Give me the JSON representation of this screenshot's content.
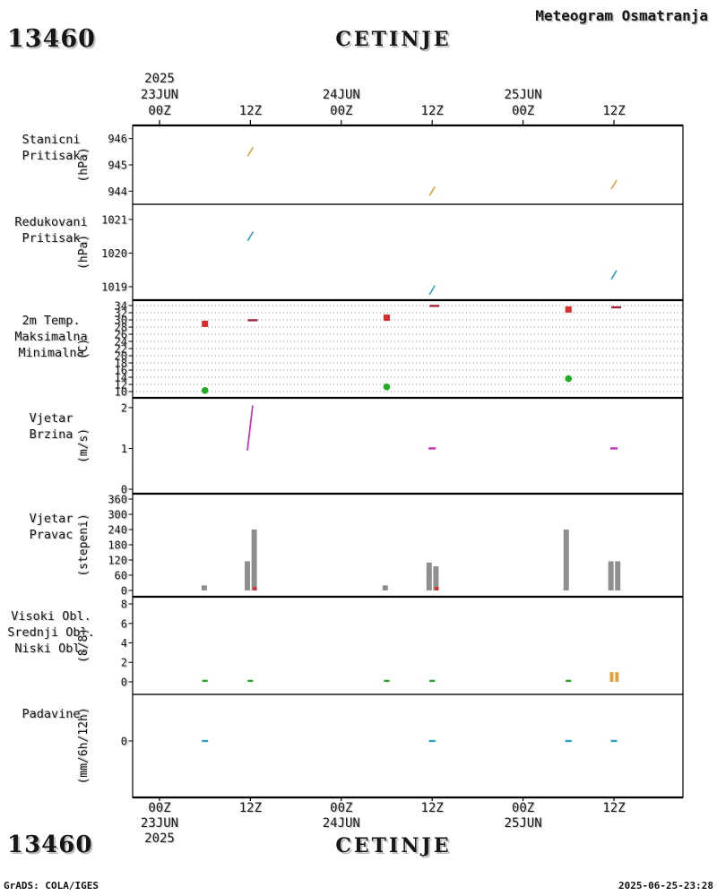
{
  "header": {
    "station_id": "13460",
    "station_name": "CETINJE",
    "title": "Meteogram Osmatranja"
  },
  "footer": {
    "station_id": "13460",
    "station_name": "CETINJE",
    "credit": "GrADS: COLA/IGES",
    "timestamp": "2025-06-25-23:28"
  },
  "time_axis": {
    "ticks": [
      {
        "h": 0,
        "label": "00Z",
        "date": "23JUN",
        "year": "2025"
      },
      {
        "h": 12,
        "label": "12Z"
      },
      {
        "h": 24,
        "label": "00Z",
        "date": "24JUN"
      },
      {
        "h": 36,
        "label": "12Z"
      },
      {
        "h": 48,
        "label": "00Z",
        "date": "25JUN"
      },
      {
        "h": 60,
        "label": "12Z"
      }
    ]
  },
  "chart_data": [
    {
      "type": "scatter",
      "id": "stanicni-pritisak",
      "labels": [
        {
          "text": "Stanicni",
          "color": "#dfa23c"
        },
        {
          "text": "Pritisak",
          "color": "#dfa23c"
        }
      ],
      "unit": "(hPa)",
      "ylim": [
        943.5,
        946.5
      ],
      "yticks": [
        946,
        945,
        944
      ],
      "series": [
        {
          "name": "stanicni-pritisak",
          "marker": "slash",
          "color": "#dfa23c",
          "points": [
            {
              "h": 12,
              "v": 945.5
            },
            {
              "h": 36,
              "v": 944.0
            },
            {
              "h": 60,
              "v": 944.25
            }
          ]
        }
      ]
    },
    {
      "type": "scatter",
      "id": "redukovani-pritisak",
      "labels": [
        {
          "text": "Redukovani",
          "color": "#2f9fc4"
        },
        {
          "text": "Pritisak",
          "color": "#2f9fc4"
        }
      ],
      "unit": "(hPa)",
      "ylim": [
        1018.6,
        1021.45
      ],
      "yticks": [
        1021,
        1020,
        1019
      ],
      "series": [
        {
          "name": "redukovani-pritisak",
          "marker": "slash",
          "color": "#2f9fc4",
          "points": [
            {
              "h": 12,
              "v": 1020.5
            },
            {
              "h": 36,
              "v": 1018.9
            },
            {
              "h": 60,
              "v": 1019.35
            }
          ]
        }
      ]
    },
    {
      "type": "scatter",
      "id": "temperatura",
      "labels": [
        {
          "text": "2m Temp.",
          "color": "#c2325a"
        },
        {
          "text": "Maksimalna",
          "color": "#d92b2b"
        },
        {
          "text": "Minimalna",
          "color": "#27a427"
        }
      ],
      "unit": "(C)",
      "ylim": [
        8.25,
        35.5
      ],
      "yticks": [
        34,
        32,
        30,
        28,
        26,
        24,
        22,
        20,
        18,
        16,
        14,
        12,
        10
      ],
      "grid": true,
      "series": [
        {
          "name": "temp-2m",
          "marker": "hdash",
          "color": "#a22438",
          "w": 11,
          "points": [
            {
              "h": 12.3,
              "v": 29.9
            },
            {
              "h": 36.3,
              "v": 33.9
            },
            {
              "h": 60.3,
              "v": 33.5
            }
          ]
        },
        {
          "name": "maksimalna",
          "marker": "square",
          "color": "#d92b2b",
          "points": [
            {
              "h": 6,
              "v": 28.9
            },
            {
              "h": 30,
              "v": 30.6
            },
            {
              "h": 54,
              "v": 32.9
            }
          ]
        },
        {
          "name": "minimalna",
          "marker": "dot",
          "color": "#1fae1f",
          "points": [
            {
              "h": 6,
              "v": 10.3
            },
            {
              "h": 30,
              "v": 11.3
            },
            {
              "h": 54,
              "v": 13.6
            }
          ]
        }
      ]
    },
    {
      "type": "line",
      "id": "vjetar-brzina",
      "labels": [
        {
          "text": "Vjetar",
          "color": "#c32ec3"
        },
        {
          "text": "Brzina",
          "color": "#c32ec3"
        }
      ],
      "unit": "(m/s)",
      "ylim": [
        -0.11,
        2.24
      ],
      "yticks": [
        2,
        1,
        0
      ],
      "series": [
        {
          "name": "brzina-segment",
          "marker": "polyline",
          "color": "#c32ec3",
          "points": [
            {
              "h": 11.6,
              "v": 0.95
            },
            {
              "h": 12.3,
              "v": 2.05
            }
          ]
        },
        {
          "name": "brzina-marks",
          "marker": "hdash",
          "color": "#c32ec3",
          "w": 8,
          "points": [
            {
              "h": 36,
              "v": 1.0
            },
            {
              "h": 60,
              "v": 1.0
            }
          ]
        }
      ]
    },
    {
      "type": "bar",
      "id": "vjetar-pravac",
      "labels": [
        {
          "text": "Vjetar",
          "color": "#a238c0"
        },
        {
          "text": "Pravac",
          "color": "#a238c0"
        }
      ],
      "unit": "(stepeni)",
      "ylim": [
        -24.7,
        381.2
      ],
      "yticks": [
        360,
        300,
        240,
        180,
        120,
        60,
        0
      ],
      "series": [
        {
          "name": "pravac-bars",
          "marker": "bar",
          "color": "#8f8f8f",
          "w": 6,
          "points": [
            {
              "h": 5.9,
              "v": 20
            },
            {
              "h": 11.6,
              "v": 115
            },
            {
              "h": 12.5,
              "v": 240
            },
            {
              "h": 29.8,
              "v": 20
            },
            {
              "h": 35.6,
              "v": 110
            },
            {
              "h": 36.5,
              "v": 95
            },
            {
              "h": 53.7,
              "v": 240
            },
            {
              "h": 59.6,
              "v": 115
            },
            {
              "h": 60.5,
              "v": 115
            }
          ]
        },
        {
          "name": "pravac-base-marks",
          "marker": "basemark",
          "color": "#d92b2b",
          "points": [
            {
              "h": 12.6,
              "v": 0
            },
            {
              "h": 36.6,
              "v": 0
            }
          ]
        }
      ]
    },
    {
      "type": "bar",
      "id": "oblacnost",
      "labels": [
        {
          "text": "Visoki Obl.",
          "color": "#3a6fd8"
        },
        {
          "text": "Srednji Obl.",
          "color": "#2f9fc4"
        },
        {
          "text": "Niski Obl.",
          "color": "#dfa23c"
        }
      ],
      "unit": "(8/8)",
      "ylim": [
        -1.29,
        8.74
      ],
      "yticks": [
        8,
        6,
        4,
        2,
        0
      ],
      "series": [
        {
          "name": "niski-bars",
          "marker": "bar",
          "color": "#dfa23c",
          "w": 4,
          "points": [
            {
              "h": 59.7,
              "v": 1
            },
            {
              "h": 60.4,
              "v": 1
            }
          ]
        },
        {
          "name": "oblacnost-zero-marks",
          "marker": "hdash",
          "color": "#27a427",
          "w": 6,
          "points": [
            {
              "h": 6,
              "v": 0.1
            },
            {
              "h": 12,
              "v": 0.1
            },
            {
              "h": 30,
              "v": 0.1
            },
            {
              "h": 36,
              "v": 0.1
            },
            {
              "h": 54,
              "v": 0.1
            }
          ]
        }
      ]
    },
    {
      "type": "scatter",
      "id": "padavine",
      "labels": [
        {
          "text": "Padavine",
          "color": "#2f9fc4"
        }
      ],
      "unit": "(mm/6h/12h)",
      "ylim": [
        -1.37,
        1.13
      ],
      "yticks": [
        0
      ],
      "series": [
        {
          "name": "padavine-marks",
          "marker": "hdash",
          "color": "#2f9fc4",
          "w": 7,
          "points": [
            {
              "h": 6,
              "v": 0
            },
            {
              "h": 36,
              "v": 0
            },
            {
              "h": 54,
              "v": 0
            },
            {
              "h": 60,
              "v": 0
            }
          ]
        }
      ]
    }
  ]
}
